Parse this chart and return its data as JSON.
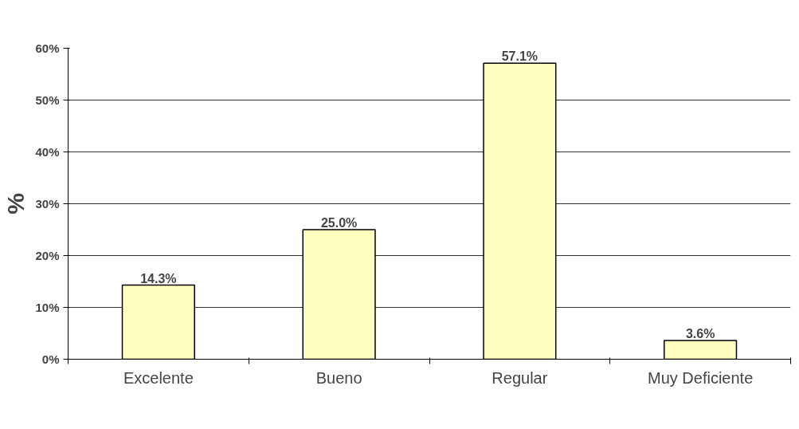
{
  "chart_data": {
    "type": "bar",
    "ylabel": "%",
    "categories": [
      "Excelente",
      "Bueno",
      "Regular",
      "Muy Deficiente"
    ],
    "values": [
      14.3,
      25.0,
      57.1,
      3.6
    ],
    "value_labels": [
      "14.3%",
      "25.0%",
      "57.1%",
      "3.6%"
    ],
    "color": "#ffffc0",
    "ylim": [
      0,
      60
    ],
    "yticks": [
      {
        "value": 0,
        "label": "0%"
      },
      {
        "value": 10,
        "label": "10%"
      },
      {
        "value": 20,
        "label": "20%"
      },
      {
        "value": 30,
        "label": "30%"
      },
      {
        "value": 40,
        "label": "40%"
      },
      {
        "value": 50,
        "label": "50%"
      },
      {
        "value": 60,
        "label": "60%"
      }
    ],
    "grid": "y"
  }
}
